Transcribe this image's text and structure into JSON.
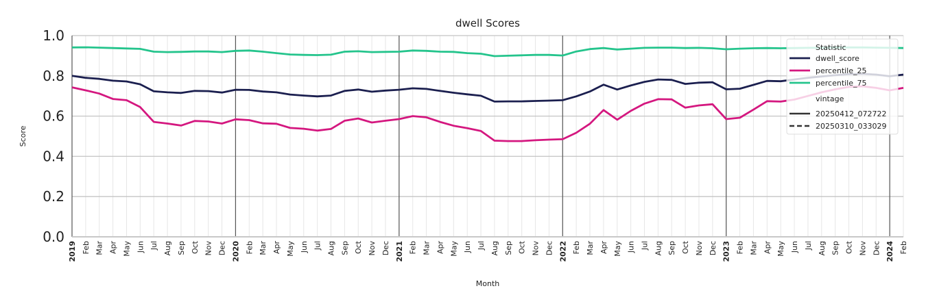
{
  "chart_data": {
    "type": "line",
    "title": "dwell Scores",
    "xlabel": "Month",
    "ylabel": "Score",
    "ylim": [
      0,
      1
    ],
    "yticks": [
      "0.0",
      "0.2",
      "0.4",
      "0.6",
      "0.8",
      "1.0"
    ],
    "x_start": "2019-01",
    "x_end": "2024-02",
    "xtick_labels": [
      "2019",
      "Feb",
      "Mar",
      "Apr",
      "May",
      "Jun",
      "Jul",
      "Aug",
      "Sep",
      "Oct",
      "Nov",
      "Dec",
      "2020",
      "Feb",
      "Mar",
      "Apr",
      "May",
      "Jun",
      "Jul",
      "Aug",
      "Sep",
      "Oct",
      "Nov",
      "Dec",
      "2021",
      "Feb",
      "Mar",
      "Apr",
      "May",
      "Jun",
      "Jul",
      "Aug",
      "Sep",
      "Oct",
      "Nov",
      "Dec",
      "2022",
      "Feb",
      "Mar",
      "Apr",
      "May",
      "Jun",
      "Jul",
      "Aug",
      "Sep",
      "Oct",
      "Nov",
      "Dec",
      "2023",
      "Feb",
      "Mar",
      "Apr",
      "May",
      "Jun",
      "Jul",
      "Aug",
      "Sep",
      "Oct",
      "Nov",
      "Dec",
      "2024",
      "Feb"
    ],
    "grid": true,
    "legend_position": "top-right",
    "legend": {
      "title": "Statistic",
      "vintage_title": "vintage",
      "vintages": [
        {
          "name": "20250412_072722",
          "style": "solid"
        },
        {
          "name": "20250310_033029",
          "style": "dashed"
        }
      ]
    },
    "series": [
      {
        "name": "dwell_score",
        "color": "#1b1f4f",
        "values": [
          0.8,
          0.79,
          0.785,
          0.776,
          0.772,
          0.758,
          0.723,
          0.718,
          0.715,
          0.725,
          0.724,
          0.717,
          0.731,
          0.73,
          0.722,
          0.718,
          0.707,
          0.702,
          0.698,
          0.702,
          0.725,
          0.732,
          0.721,
          0.727,
          0.731,
          0.738,
          0.735,
          0.725,
          0.716,
          0.708,
          0.701,
          0.672,
          0.673,
          0.673,
          0.675,
          0.677,
          0.679,
          0.698,
          0.722,
          0.756,
          0.732,
          0.752,
          0.77,
          0.782,
          0.78,
          0.76,
          0.766,
          0.768,
          0.733,
          0.736,
          0.755,
          0.775,
          0.773,
          0.782,
          0.79,
          0.797,
          0.803,
          0.808,
          0.81,
          0.806,
          0.798,
          0.806
        ]
      },
      {
        "name": "percentile_25",
        "color": "#d4177f",
        "values": [
          0.743,
          0.728,
          0.712,
          0.685,
          0.679,
          0.645,
          0.571,
          0.563,
          0.553,
          0.576,
          0.573,
          0.563,
          0.584,
          0.58,
          0.564,
          0.562,
          0.541,
          0.537,
          0.528,
          0.536,
          0.577,
          0.588,
          0.568,
          0.577,
          0.585,
          0.6,
          0.594,
          0.571,
          0.552,
          0.54,
          0.526,
          0.478,
          0.476,
          0.476,
          0.48,
          0.483,
          0.485,
          0.517,
          0.562,
          0.63,
          0.582,
          0.626,
          0.662,
          0.684,
          0.683,
          0.642,
          0.653,
          0.659,
          0.585,
          0.592,
          0.632,
          0.674,
          0.672,
          0.682,
          0.7,
          0.718,
          0.733,
          0.745,
          0.748,
          0.74,
          0.728,
          0.74
        ]
      },
      {
        "name": "percentile_75",
        "color": "#24c48c",
        "values": [
          0.941,
          0.942,
          0.94,
          0.938,
          0.936,
          0.934,
          0.92,
          0.918,
          0.919,
          0.921,
          0.921,
          0.918,
          0.924,
          0.926,
          0.92,
          0.913,
          0.906,
          0.904,
          0.903,
          0.905,
          0.92,
          0.922,
          0.918,
          0.919,
          0.92,
          0.926,
          0.924,
          0.92,
          0.919,
          0.913,
          0.91,
          0.898,
          0.9,
          0.902,
          0.904,
          0.904,
          0.901,
          0.921,
          0.933,
          0.938,
          0.931,
          0.935,
          0.939,
          0.94,
          0.94,
          0.938,
          0.939,
          0.937,
          0.932,
          0.935,
          0.937,
          0.938,
          0.937,
          0.938,
          0.939,
          0.939,
          0.94,
          0.941,
          0.941,
          0.94,
          0.939,
          0.938
        ]
      }
    ]
  }
}
